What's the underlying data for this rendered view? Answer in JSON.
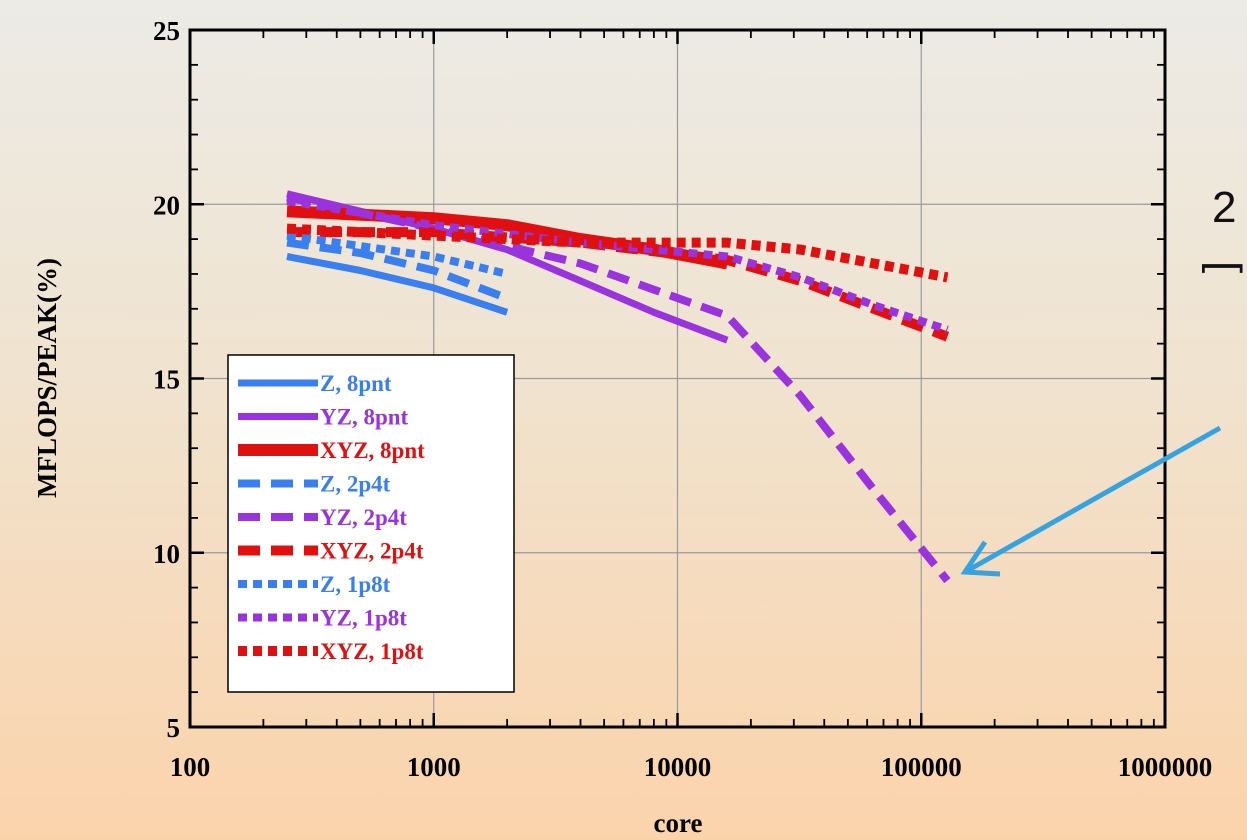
{
  "chart_data": {
    "type": "line",
    "title": "",
    "xlabel": "core",
    "ylabel": "MFLOPS/PEAK(%)",
    "xscale": "log",
    "xlim": [
      100,
      1000000
    ],
    "ylim": [
      5,
      25
    ],
    "xticks": [
      "100",
      "1000",
      "10000",
      "100000",
      "1000000"
    ],
    "yticks": [
      "5",
      "10",
      "15",
      "20",
      "25"
    ],
    "grid": true,
    "legend_position": "lower-left",
    "series": [
      {
        "name": "Z, 8pnt",
        "color": "#3a7ff0",
        "style": "solid",
        "x": [
          250,
          500,
          1000,
          2000
        ],
        "y": [
          18.5,
          18.1,
          17.6,
          16.9
        ]
      },
      {
        "name": "YZ, 8pnt",
        "color": "#9933dd",
        "style": "solid",
        "x": [
          250,
          1000,
          2000,
          4000,
          8000,
          16000
        ],
        "y": [
          20.3,
          19.3,
          18.7,
          17.8,
          16.9,
          16.1
        ]
      },
      {
        "name": "XYZ, 8pnt",
        "color": "#e01010",
        "style": "solid",
        "x": [
          250,
          1000,
          2000,
          4000,
          8000,
          16000
        ],
        "y": [
          19.8,
          19.6,
          19.4,
          19.0,
          18.7,
          18.3
        ]
      },
      {
        "name": "Z, 2p4t",
        "color": "#3a7ff0",
        "style": "dashed",
        "x": [
          250,
          500,
          1000,
          2000
        ],
        "y": [
          18.9,
          18.6,
          18.1,
          17.3
        ]
      },
      {
        "name": "YZ, 2p4t",
        "color": "#9933dd",
        "style": "dashed",
        "x": [
          250,
          1000,
          4000,
          16000,
          32000,
          64000,
          128000
        ],
        "y": [
          20.2,
          19.3,
          18.3,
          16.8,
          14.5,
          11.8,
          9.2
        ]
      },
      {
        "name": "XYZ, 2p4t",
        "color": "#e01010",
        "style": "dashed",
        "x": [
          250,
          1000,
          4000,
          16000,
          32000,
          64000,
          128000
        ],
        "y": [
          19.2,
          19.2,
          18.9,
          18.4,
          17.8,
          17.0,
          16.2
        ]
      },
      {
        "name": "Z, 1p8t",
        "color": "#3a7ff0",
        "style": "dotted",
        "x": [
          250,
          500,
          1000,
          2000
        ],
        "y": [
          19.1,
          18.8,
          18.5,
          18.0
        ]
      },
      {
        "name": "YZ, 1p8t",
        "color": "#9933dd",
        "style": "dotted",
        "x": [
          250,
          1000,
          4000,
          16000,
          32000,
          64000,
          128000
        ],
        "y": [
          20.1,
          19.4,
          18.9,
          18.5,
          17.9,
          17.1,
          16.4
        ]
      },
      {
        "name": "XYZ, 1p8t",
        "color": "#e01010",
        "style": "dotted",
        "x": [
          250,
          1000,
          4000,
          16000,
          32000,
          64000,
          128000
        ],
        "y": [
          19.3,
          19.1,
          18.9,
          18.9,
          18.7,
          18.3,
          17.9
        ]
      }
    ]
  },
  "side_text": "2",
  "side_glyph": "[",
  "colors": {
    "background_top": "#ecebe6",
    "background_bottom": "#fbd3ab",
    "annotation_arrow": "#35a3e0"
  }
}
